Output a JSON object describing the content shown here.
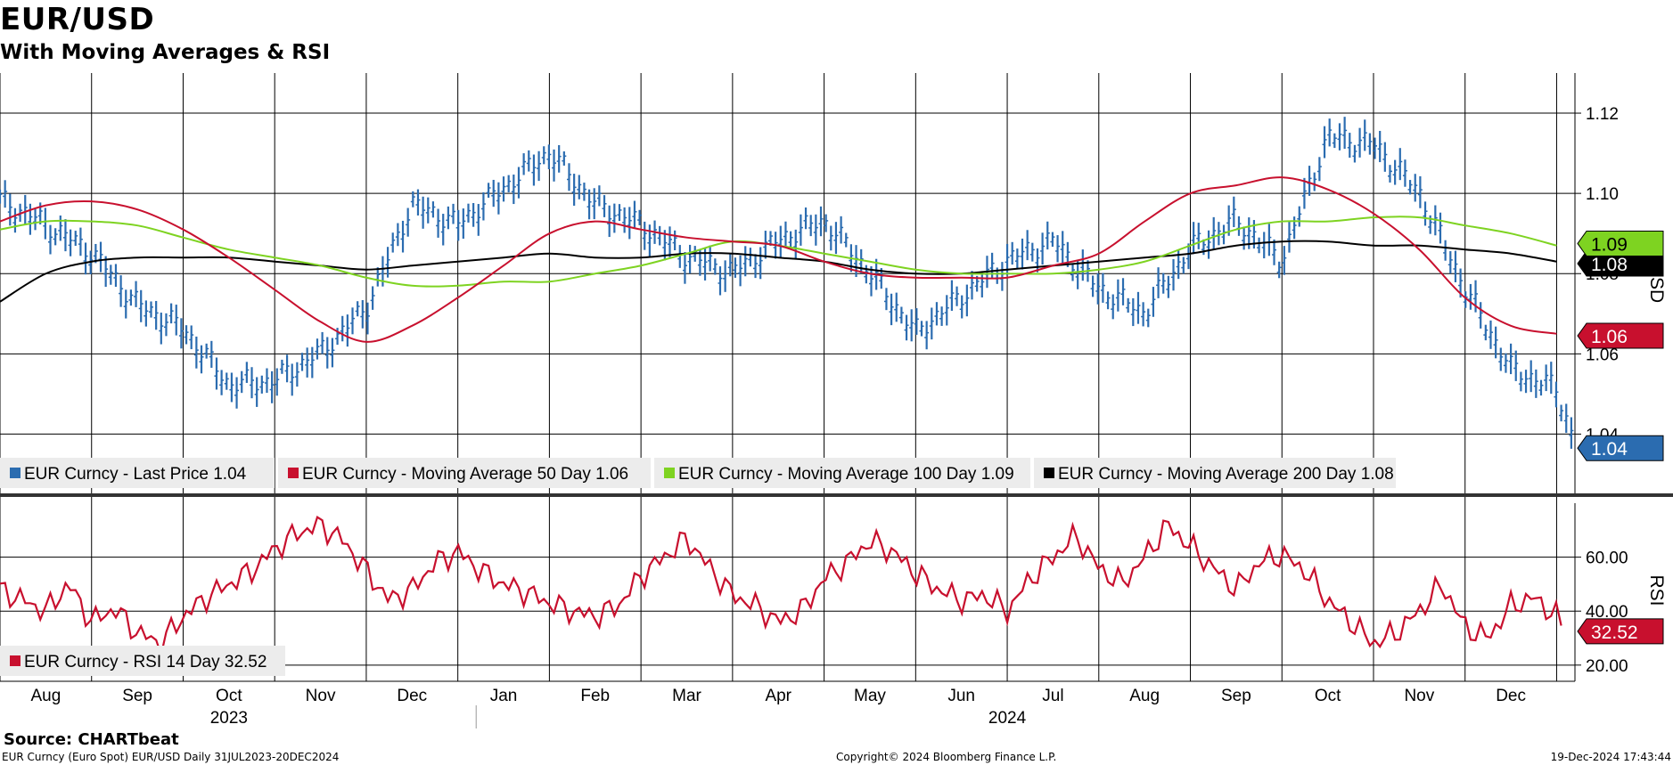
{
  "title": "EUR/USD",
  "subtitle": "With Moving Averages & RSI",
  "source_label": "Source: CHARTbeat",
  "footer": {
    "left": "EUR Curncy (Euro Spot) EUR/USD  Daily 31JUL2023-20DEC2024",
    "center": "Copyright© 2024 Bloomberg Finance L.P.",
    "right": "19-Dec-2024 17:43:44"
  },
  "colors": {
    "price": "#2b6cb0",
    "ma50": "#c8102e",
    "ma100": "#7ed321",
    "ma200": "#000000",
    "rsi": "#c8102e"
  },
  "chart_data": [
    {
      "type": "line",
      "title": "EUR/USD",
      "ylabel": "USD",
      "ylim": [
        1.025,
        1.13
      ],
      "yticks": [
        1.04,
        1.06,
        1.08,
        1.1,
        1.12
      ],
      "xlim": [
        0,
        17.2
      ],
      "month_ticks": [
        "Aug",
        "Sep",
        "Oct",
        "Nov",
        "Dec",
        "Jan",
        "Feb",
        "Mar",
        "Apr",
        "May",
        "Jun",
        "Jul",
        "Aug",
        "Sep",
        "Oct",
        "Nov",
        "Dec"
      ],
      "year_labels": [
        {
          "label": "2023",
          "x": 2.5
        },
        {
          "label": "2024",
          "x": 11.0
        }
      ],
      "legend": [
        {
          "text": "EUR Curncy - Last Price 1.04",
          "color": "#2b6cb0"
        },
        {
          "text": "EUR Curncy - Moving Average 50 Day 1.06",
          "color": "#c8102e"
        },
        {
          "text": "EUR Curncy - Moving Average 100 Day 1.09",
          "color": "#7ed321"
        },
        {
          "text": "EUR Curncy - Moving Average 200 Day 1.08",
          "color": "#000000"
        }
      ],
      "value_tags": [
        {
          "label": "1.09",
          "value": 1.0875,
          "bg": "#7ed321",
          "fg": "#000000"
        },
        {
          "label": "1.08",
          "value": 1.0825,
          "bg": "#000000",
          "fg": "#ffffff"
        },
        {
          "label": "1.06",
          "value": 1.0645,
          "bg": "#c8102e",
          "fg": "#ffffff"
        },
        {
          "label": "1.04",
          "value": 1.0365,
          "bg": "#2b6cb0",
          "fg": "#ffffff"
        }
      ],
      "series": [
        {
          "name": "Last Price",
          "style": "bars",
          "x": [
            0,
            0.5,
            1,
            1.5,
            2,
            2.5,
            3,
            3.5,
            4,
            4.5,
            5,
            5.5,
            6,
            6.5,
            7,
            7.5,
            8,
            8.5,
            9,
            9.5,
            10,
            10.5,
            11,
            11.5,
            12,
            12.5,
            13,
            13.5,
            14,
            14.5,
            15,
            15.5,
            16,
            16.5,
            17,
            17.2
          ],
          "values": [
            1.098,
            1.092,
            1.085,
            1.072,
            1.066,
            1.052,
            1.053,
            1.06,
            1.071,
            1.097,
            1.092,
            1.101,
            1.11,
            1.097,
            1.092,
            1.084,
            1.08,
            1.088,
            1.093,
            1.08,
            1.065,
            1.074,
            1.083,
            1.088,
            1.076,
            1.07,
            1.086,
            1.093,
            1.083,
            1.114,
            1.112,
            1.1,
            1.076,
            1.056,
            1.051,
            1.037
          ]
        },
        {
          "name": "Moving Average 50 Day",
          "style": "line",
          "x": [
            0,
            0.5,
            1,
            1.5,
            2,
            2.5,
            3,
            3.5,
            4,
            4.5,
            5,
            5.5,
            6,
            6.5,
            7,
            7.5,
            8,
            8.5,
            9,
            9.5,
            10,
            10.5,
            11,
            11.5,
            12,
            12.5,
            13,
            13.5,
            14,
            14.5,
            15,
            15.5,
            16,
            16.5,
            17
          ],
          "values": [
            1.093,
            1.097,
            1.098,
            1.096,
            1.091,
            1.084,
            1.076,
            1.068,
            1.063,
            1.067,
            1.074,
            1.082,
            1.09,
            1.093,
            1.091,
            1.089,
            1.088,
            1.087,
            1.083,
            1.08,
            1.079,
            1.079,
            1.079,
            1.082,
            1.085,
            1.093,
            1.1,
            1.102,
            1.104,
            1.101,
            1.095,
            1.086,
            1.074,
            1.067,
            1.065
          ]
        },
        {
          "name": "Moving Average 100 Day",
          "style": "line",
          "x": [
            0,
            0.5,
            1,
            1.5,
            2,
            2.5,
            3,
            3.5,
            4,
            4.5,
            5,
            5.5,
            6,
            6.5,
            7,
            7.5,
            8,
            8.5,
            9,
            9.5,
            10,
            10.5,
            11,
            11.5,
            12,
            12.5,
            13,
            13.5,
            14,
            14.5,
            15,
            15.5,
            16,
            16.5,
            17
          ],
          "values": [
            1.091,
            1.093,
            1.093,
            1.092,
            1.089,
            1.086,
            1.084,
            1.082,
            1.079,
            1.077,
            1.077,
            1.078,
            1.078,
            1.08,
            1.082,
            1.085,
            1.088,
            1.087,
            1.085,
            1.083,
            1.081,
            1.08,
            1.08,
            1.08,
            1.081,
            1.083,
            1.087,
            1.091,
            1.093,
            1.093,
            1.094,
            1.094,
            1.092,
            1.09,
            1.087
          ]
        },
        {
          "name": "Moving Average 200 Day",
          "style": "line",
          "x": [
            0,
            0.5,
            1,
            1.5,
            2,
            2.5,
            3,
            3.5,
            4,
            4.5,
            5,
            5.5,
            6,
            6.5,
            7,
            7.5,
            8,
            8.5,
            9,
            9.5,
            10,
            10.5,
            11,
            11.5,
            12,
            12.5,
            13,
            13.5,
            14,
            14.5,
            15,
            15.5,
            16,
            16.5,
            17
          ],
          "values": [
            1.073,
            1.08,
            1.083,
            1.084,
            1.084,
            1.084,
            1.083,
            1.082,
            1.081,
            1.082,
            1.083,
            1.084,
            1.085,
            1.084,
            1.084,
            1.085,
            1.085,
            1.084,
            1.083,
            1.081,
            1.08,
            1.08,
            1.081,
            1.082,
            1.083,
            1.084,
            1.085,
            1.087,
            1.088,
            1.088,
            1.087,
            1.087,
            1.086,
            1.085,
            1.083
          ]
        }
      ]
    },
    {
      "type": "line",
      "title": "RSI",
      "ylabel": "RSI",
      "ylim": [
        14,
        80
      ],
      "yticks": [
        20.0,
        40.0,
        60.0
      ],
      "ytick_labels": [
        "20.00",
        "40.00",
        "60.00"
      ],
      "legend": [
        {
          "text": "EUR Curncy - RSI 14 Day 32.52",
          "color": "#c8102e"
        }
      ],
      "value_tags": [
        {
          "label": "32.52",
          "value": 32.52,
          "bg": "#c8102e",
          "fg": "#ffffff"
        }
      ],
      "series": [
        {
          "name": "RSI 14 Day",
          "x": [
            0,
            0.25,
            0.5,
            0.75,
            1,
            1.25,
            1.5,
            1.75,
            2,
            2.25,
            2.5,
            2.75,
            3,
            3.25,
            3.5,
            3.75,
            4,
            4.25,
            4.5,
            4.75,
            5,
            5.25,
            5.5,
            5.75,
            6,
            6.25,
            6.5,
            6.75,
            7,
            7.25,
            7.5,
            7.75,
            8,
            8.25,
            8.5,
            8.75,
            9,
            9.25,
            9.5,
            9.75,
            10,
            10.25,
            10.5,
            10.75,
            11,
            11.25,
            11.5,
            11.75,
            12,
            12.25,
            12.5,
            12.75,
            13,
            13.25,
            13.5,
            13.75,
            14,
            14.25,
            14.5,
            14.75,
            15,
            15.25,
            15.5,
            15.75,
            16,
            16.25,
            16.5,
            16.75,
            17,
            17.1
          ],
          "values": [
            48,
            44,
            40,
            50,
            36,
            41,
            32,
            28,
            38,
            45,
            50,
            55,
            63,
            69,
            72,
            66,
            55,
            44,
            48,
            58,
            62,
            55,
            50,
            47,
            43,
            40,
            38,
            42,
            53,
            60,
            67,
            56,
            46,
            42,
            36,
            40,
            52,
            58,
            66,
            62,
            54,
            48,
            44,
            46,
            40,
            52,
            60,
            68,
            56,
            50,
            60,
            72,
            64,
            56,
            48,
            58,
            61,
            55,
            44,
            36,
            28,
            32,
            40,
            50,
            34,
            30,
            42,
            45,
            38,
            32.52
          ]
        }
      ]
    }
  ]
}
